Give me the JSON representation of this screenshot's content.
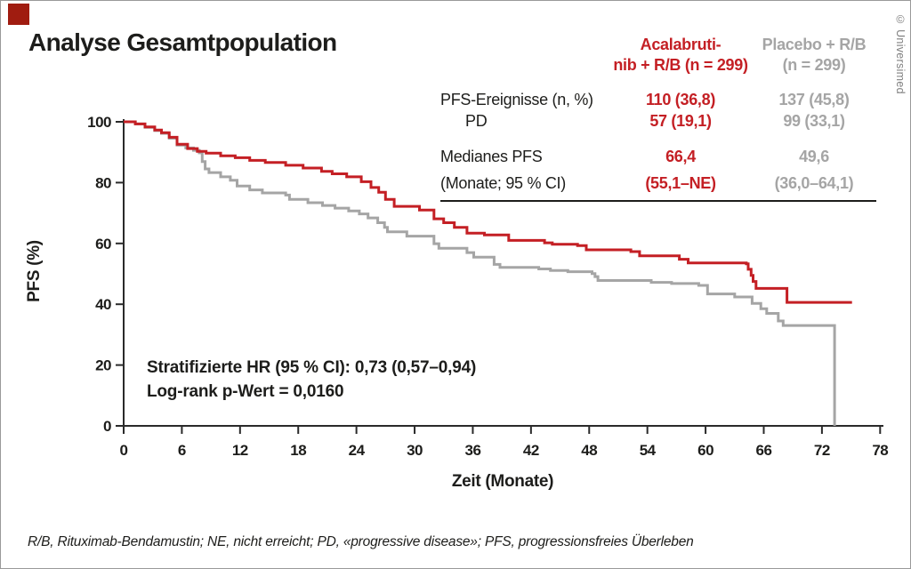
{
  "slide": {
    "title": "Analyse Gesamtpopulation",
    "credit": "© Universimed",
    "footnote": "R/B, Rituximab-Bendamustin; NE, nicht erreicht; PD, «progressive disease»; PFS, progressionsfreies Überleben"
  },
  "colors": {
    "acalabrutinib_red": "#c41f24",
    "placebo_gray": "#a5a5a5",
    "text_black": "#1d1d1b",
    "corner_square_red": "#a01c10",
    "frame_border": "#999999"
  },
  "table": {
    "columns": [
      {
        "id": "acalabrutinib",
        "header_line1": "Acalabruti-",
        "header_line2": "nib + R/B (n = 299)"
      },
      {
        "id": "placebo",
        "header_line1": "Placebo + R/B",
        "header_line2": "(n = 299)"
      }
    ],
    "rows": [
      {
        "label": "PFS-Ereignisse (n, %)",
        "acalabrutinib": "110 (36,8)",
        "placebo": "137 (45,8)"
      },
      {
        "label": "PD",
        "acalabrutinib": "57 (19,1)",
        "placebo": "99 (33,1)"
      },
      {
        "label": "Medianes PFS",
        "acalabrutinib": "66,4",
        "placebo": "49,6"
      },
      {
        "label": "(Monate; 95 % CI)",
        "acalabrutinib": "(55,1–NE)",
        "placebo": "(36,0–64,1)"
      }
    ]
  },
  "chart_data": {
    "type": "line",
    "variant": "kaplan_meier_step",
    "title": "Analyse Gesamtpopulation",
    "xlabel": "Zeit (Monate)",
    "ylabel": "PFS (%)",
    "xlim": [
      0,
      78
    ],
    "ylim": [
      0,
      100
    ],
    "xticks": [
      0,
      6,
      12,
      18,
      24,
      30,
      36,
      42,
      48,
      54,
      60,
      66,
      72,
      78
    ],
    "yticks": [
      0,
      20,
      40,
      60,
      80,
      100
    ],
    "grid": false,
    "legend_position": "table-top-right",
    "annotations": {
      "hr": "Stratifizierte HR (95 % CI): 0,73 (0,57–0,94)",
      "logrank": "Log-rank p-Wert = 0,0160"
    },
    "series": [
      {
        "name": "Acalabrutinib + R/B (n = 299)",
        "color": "#c41f24",
        "points": [
          [
            0,
            100
          ],
          [
            1.2,
            99.3
          ],
          [
            2.2,
            98.3
          ],
          [
            3.2,
            97.3
          ],
          [
            3.9,
            96.4
          ],
          [
            4.7,
            94.9
          ],
          [
            5.5,
            92.6
          ],
          [
            6.6,
            91.2
          ],
          [
            7.6,
            90.3
          ],
          [
            8.5,
            89.7
          ],
          [
            10,
            88.8
          ],
          [
            11.5,
            88.2
          ],
          [
            13,
            87.3
          ],
          [
            14.6,
            86.6
          ],
          [
            16.7,
            85.7
          ],
          [
            18.5,
            84.8
          ],
          [
            20.4,
            83.7
          ],
          [
            21.5,
            82.9
          ],
          [
            23,
            81.9
          ],
          [
            24.5,
            80.3
          ],
          [
            25.5,
            78.4
          ],
          [
            26.3,
            76.8
          ],
          [
            27,
            74.5
          ],
          [
            27.9,
            72.2
          ],
          [
            30.5,
            71
          ],
          [
            32,
            68.1
          ],
          [
            33,
            66.8
          ],
          [
            34.1,
            65.3
          ],
          [
            35.4,
            63.4
          ],
          [
            37.2,
            62.8
          ],
          [
            39.7,
            61
          ],
          [
            43.4,
            60.2
          ],
          [
            44.2,
            59.7
          ],
          [
            46.8,
            59.3
          ],
          [
            47.7,
            57.9
          ],
          [
            52.3,
            57.3
          ],
          [
            53.2,
            55.9
          ],
          [
            57.3,
            54.8
          ],
          [
            58.2,
            53.6
          ],
          [
            64.2,
            53.3
          ],
          [
            64.4,
            51.5
          ],
          [
            64.7,
            49.5
          ],
          [
            64.9,
            47.5
          ],
          [
            65.2,
            45.2
          ],
          [
            68.2,
            45.2
          ],
          [
            68.4,
            40.6
          ],
          [
            75.1,
            40.6
          ]
        ]
      },
      {
        "name": "Placebo + R/B (n = 299)",
        "color": "#a5a5a5",
        "points": [
          [
            0,
            100
          ],
          [
            1.2,
            99.3
          ],
          [
            2.2,
            98.2
          ],
          [
            3.2,
            97.1
          ],
          [
            3.9,
            96.2
          ],
          [
            4.7,
            94.6
          ],
          [
            5.5,
            92.3
          ],
          [
            6.4,
            91.4
          ],
          [
            7.2,
            90.6
          ],
          [
            7.8,
            89.8
          ],
          [
            8.1,
            86.9
          ],
          [
            8.4,
            84.5
          ],
          [
            8.8,
            83.3
          ],
          [
            10,
            81.9
          ],
          [
            11,
            80.8
          ],
          [
            11.7,
            78.9
          ],
          [
            13,
            77.6
          ],
          [
            14.3,
            76.6
          ],
          [
            16.7,
            75.9
          ],
          [
            17.1,
            74.5
          ],
          [
            19,
            73.4
          ],
          [
            20.5,
            72.5
          ],
          [
            21.8,
            71.6
          ],
          [
            23.2,
            70.7
          ],
          [
            24.3,
            69.7
          ],
          [
            25.2,
            68.4
          ],
          [
            26.2,
            66.8
          ],
          [
            26.9,
            65.3
          ],
          [
            27.2,
            63.8
          ],
          [
            29.2,
            62.4
          ],
          [
            32,
            59.9
          ],
          [
            32.5,
            58.4
          ],
          [
            35.4,
            57
          ],
          [
            36.1,
            55.5
          ],
          [
            38.2,
            53.1
          ],
          [
            38.8,
            52.1
          ],
          [
            42.8,
            51.6
          ],
          [
            44,
            51.1
          ],
          [
            45.8,
            50.7
          ],
          [
            48.3,
            50.1
          ],
          [
            48.6,
            49.1
          ],
          [
            48.9,
            47.8
          ],
          [
            54.4,
            47.2
          ],
          [
            56.5,
            46.8
          ],
          [
            59.3,
            46.2
          ],
          [
            60.2,
            43.4
          ],
          [
            63,
            42.4
          ],
          [
            64.8,
            40.3
          ],
          [
            65.7,
            38.5
          ],
          [
            66.3,
            37
          ],
          [
            67.5,
            34.5
          ],
          [
            68,
            33
          ],
          [
            73.3,
            33
          ],
          [
            73.3,
            0
          ]
        ]
      }
    ]
  }
}
